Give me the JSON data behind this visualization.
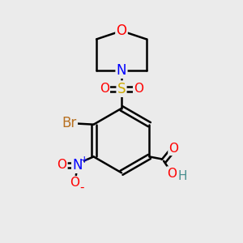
{
  "background_color": "#ebebeb",
  "bond_color": "#000000",
  "bond_width": 1.8,
  "atom_colors": {
    "O": "#ff0000",
    "N": "#0000ff",
    "S": "#ccaa00",
    "Br": "#b87020",
    "C": "#000000",
    "H": "#4a9090"
  },
  "font_size": 12,
  "fig_size": [
    3.0,
    3.0
  ],
  "dpi": 100
}
